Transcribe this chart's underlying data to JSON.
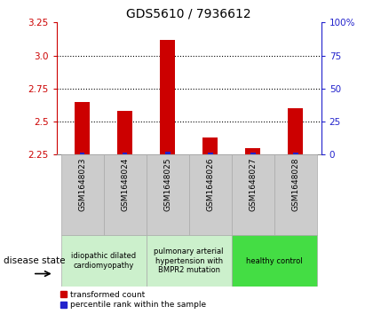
{
  "title": "GDS5610 / 7936612",
  "samples": [
    "GSM1648023",
    "GSM1648024",
    "GSM1648025",
    "GSM1648026",
    "GSM1648027",
    "GSM1648028"
  ],
  "transformed_count": [
    2.65,
    2.58,
    3.12,
    2.38,
    2.3,
    2.6
  ],
  "percentile_rank": [
    1.5,
    1.5,
    2.5,
    1.5,
    1.5,
    1.5
  ],
  "y_min": 2.25,
  "y_max": 3.25,
  "y_ticks": [
    2.25,
    2.5,
    2.75,
    3.0,
    3.25
  ],
  "y_right_ticks": [
    0,
    25,
    50,
    75,
    100
  ],
  "y_right_labels": [
    "0",
    "25",
    "50",
    "75",
    "100%"
  ],
  "bar_color_red": "#CC0000",
  "bar_color_blue": "#2222CC",
  "xlabel_color": "#CC0000",
  "ylabel_right_color": "#2222CC",
  "legend_red_label": "transformed count",
  "legend_blue_label": "percentile rank within the sample",
  "disease_state_label": "disease state",
  "bar_width": 0.35,
  "percentile_bar_width": 0.12,
  "group_ranges": [
    [
      -0.5,
      1.5
    ],
    [
      1.5,
      3.5
    ],
    [
      3.5,
      5.5
    ]
  ],
  "group_labels": [
    "idiopathic dilated\ncardiomyopathy",
    "pulmonary arterial\nhypertension with\nBMPR2 mutation",
    "healthy control"
  ],
  "group_fcolors": [
    "#ccf0cc",
    "#ccf0cc",
    "#44dd44"
  ],
  "sample_box_color": "#cccccc",
  "sample_box_edge": "#aaaaaa"
}
